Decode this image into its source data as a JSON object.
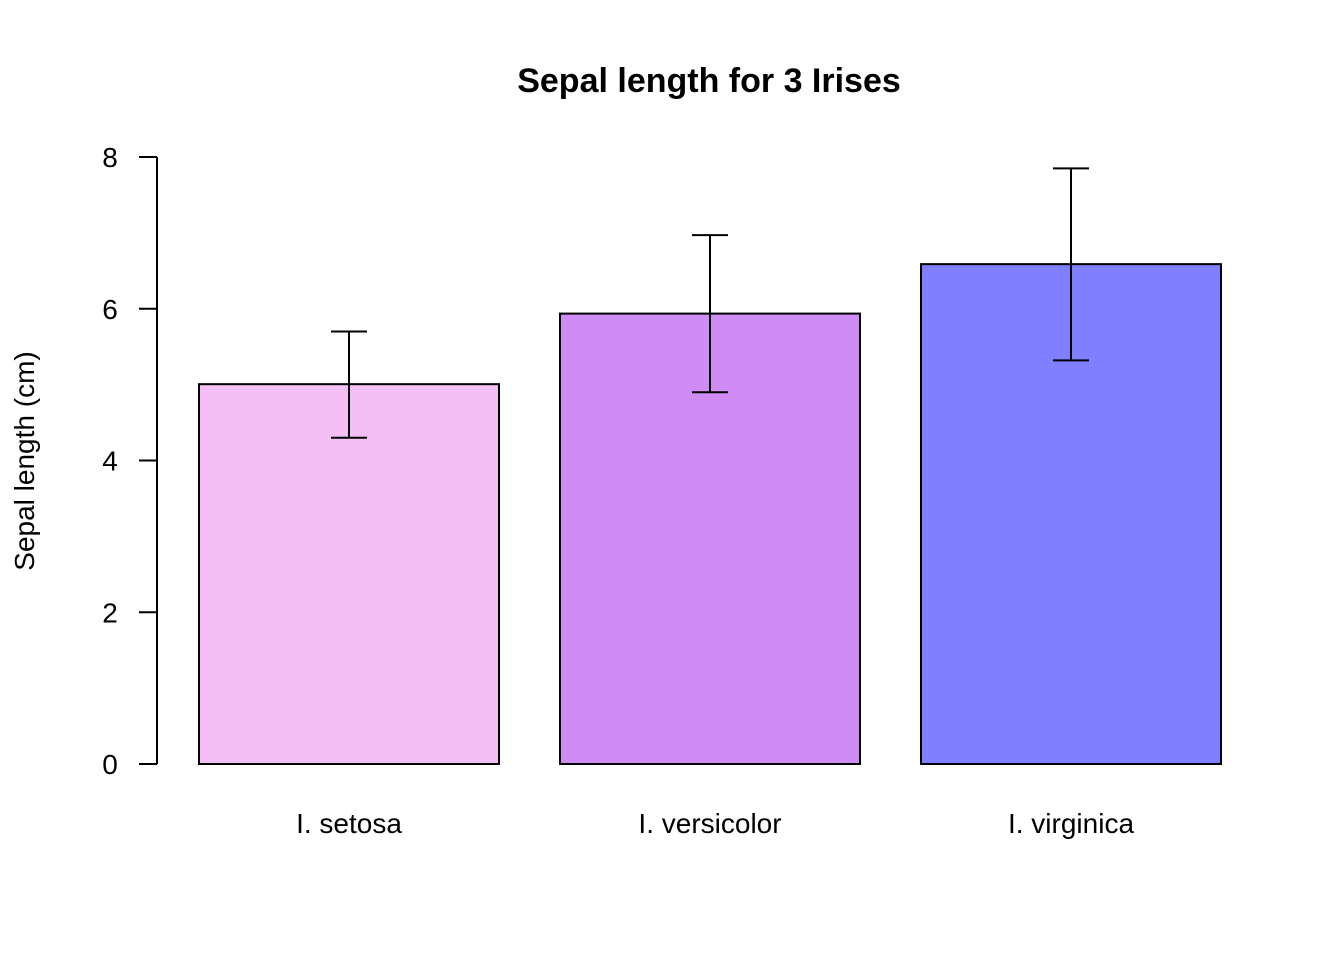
{
  "chart_data": {
    "type": "bar",
    "title": "Sepal length for 3 Irises",
    "xlabel": "",
    "ylabel": "Sepal length (cm)",
    "ylim": [
      0,
      8
    ],
    "yticks": [
      0,
      2,
      4,
      6,
      8
    ],
    "categories": [
      "I. setosa",
      "I. versicolor",
      "I. virginica"
    ],
    "values": [
      5.006,
      5.936,
      6.588
    ],
    "error_bars": [
      {
        "lower": 4.3,
        "upper": 5.7
      },
      {
        "lower": 4.9,
        "upper": 6.97
      },
      {
        "lower": 5.32,
        "upper": 7.85
      }
    ],
    "colors": [
      "#F4BFF4",
      "#CE8CF4",
      "#7F7FFF"
    ],
    "grid": false,
    "legend": "none"
  }
}
